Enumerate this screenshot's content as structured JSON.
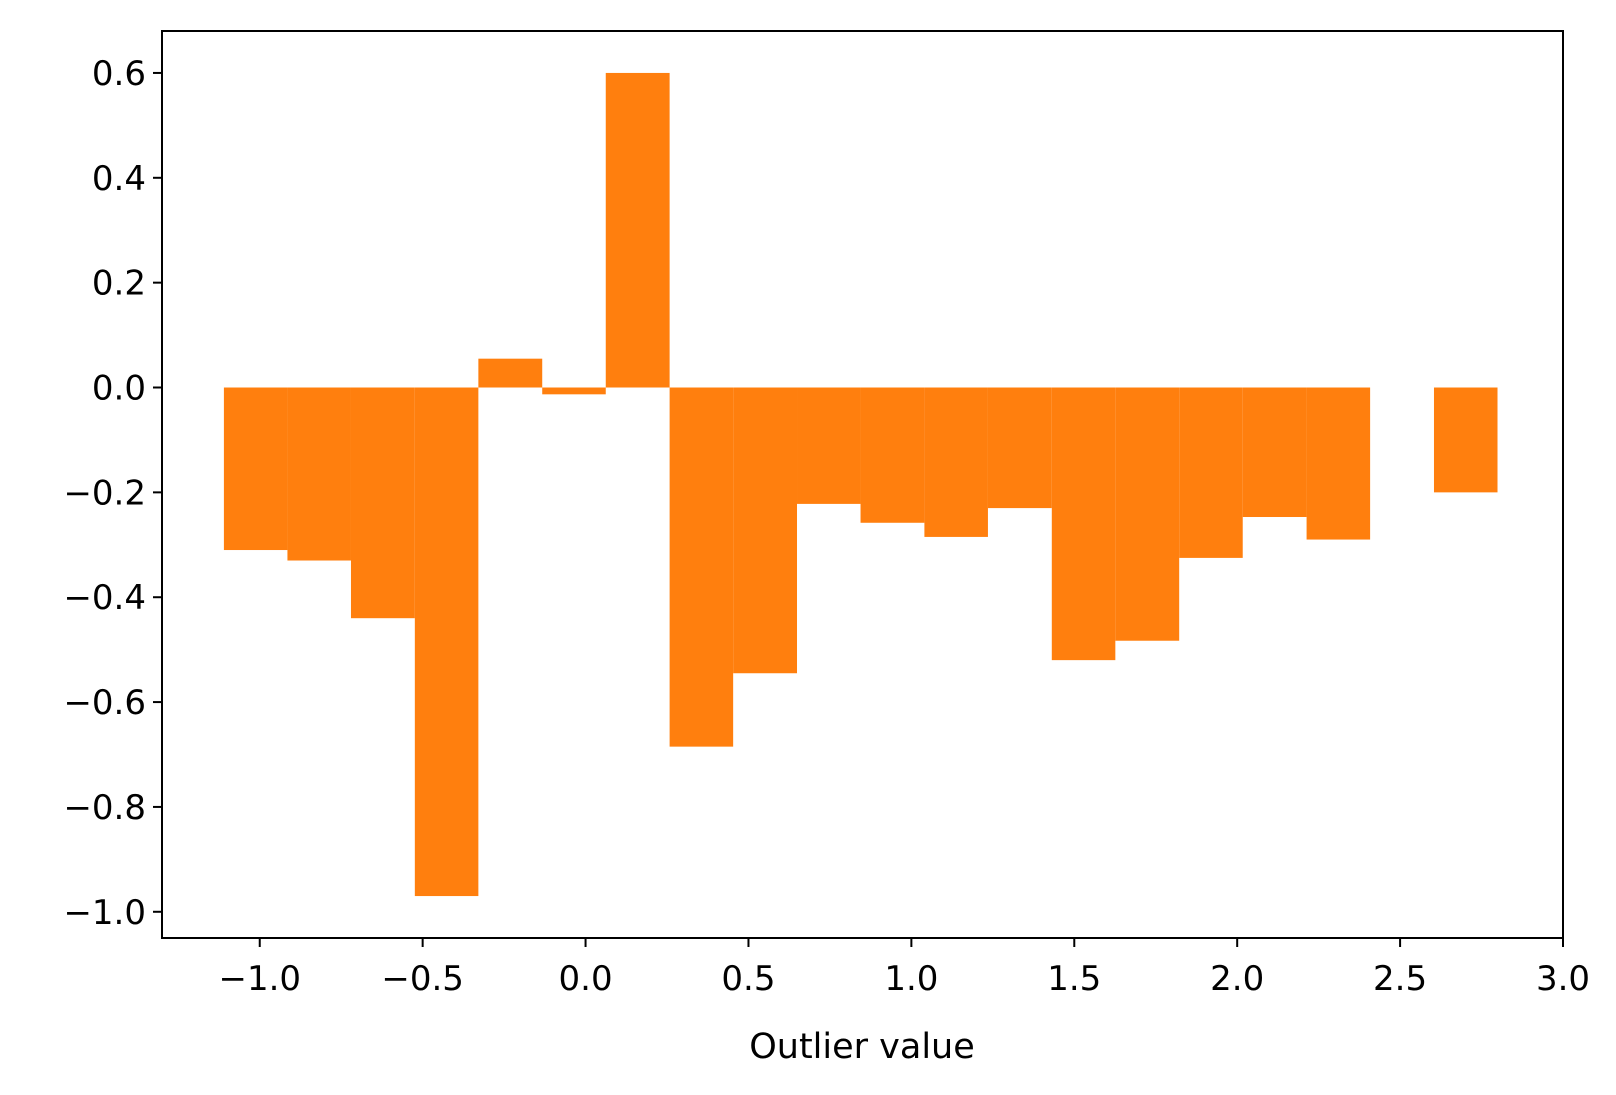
{
  "chart_data": {
    "type": "bar",
    "xlabel": "Outlier value",
    "ylabel": "",
    "title": "",
    "bar_color": "#ff7f0e",
    "xlim": [
      -1.3,
      3.0
    ],
    "ylim": [
      -1.05,
      0.68
    ],
    "grid": false,
    "x_ticks": [
      -1.0,
      -0.5,
      0.0,
      0.5,
      1.0,
      1.5,
      2.0,
      2.5,
      3.0
    ],
    "x_tick_labels": [
      "−1.0",
      "−0.5",
      "0.0",
      "0.5",
      "1.0",
      "1.5",
      "2.0",
      "2.5",
      "3.0"
    ],
    "y_ticks": [
      0.6,
      0.4,
      0.2,
      0.0,
      -0.2,
      -0.4,
      -0.6,
      -0.8,
      -1.0
    ],
    "y_tick_labels": [
      "0.6",
      "0.4",
      "0.2",
      "0.0",
      "−0.2",
      "−0.4",
      "−0.6",
      "−0.8",
      "−1.0"
    ],
    "bars": [
      {
        "x0": -1.11,
        "x1": -0.915,
        "value": -0.31
      },
      {
        "x0": -0.915,
        "x1": -0.72,
        "value": -0.33
      },
      {
        "x0": -0.72,
        "x1": -0.524,
        "value": -0.44
      },
      {
        "x0": -0.524,
        "x1": -0.329,
        "value": -0.97
      },
      {
        "x0": -0.329,
        "x1": -0.133,
        "value": 0.055
      },
      {
        "x0": -0.133,
        "x1": 0.062,
        "value": -0.013
      },
      {
        "x0": 0.062,
        "x1": 0.258,
        "value": 0.6
      },
      {
        "x0": 0.258,
        "x1": 0.453,
        "value": -0.685
      },
      {
        "x0": 0.453,
        "x1": 0.649,
        "value": -0.545
      },
      {
        "x0": 0.649,
        "x1": 0.844,
        "value": -0.222
      },
      {
        "x0": 0.844,
        "x1": 1.04,
        "value": -0.258
      },
      {
        "x0": 1.04,
        "x1": 1.235,
        "value": -0.285
      },
      {
        "x0": 1.235,
        "x1": 1.431,
        "value": -0.23
      },
      {
        "x0": 1.431,
        "x1": 1.626,
        "value": -0.52
      },
      {
        "x0": 1.626,
        "x1": 1.822,
        "value": -0.483
      },
      {
        "x0": 1.822,
        "x1": 2.017,
        "value": -0.325
      },
      {
        "x0": 2.017,
        "x1": 2.213,
        "value": -0.247
      },
      {
        "x0": 2.213,
        "x1": 2.408,
        "value": -0.29
      },
      {
        "x0": 2.604,
        "x1": 2.799,
        "value": -0.2
      }
    ]
  }
}
